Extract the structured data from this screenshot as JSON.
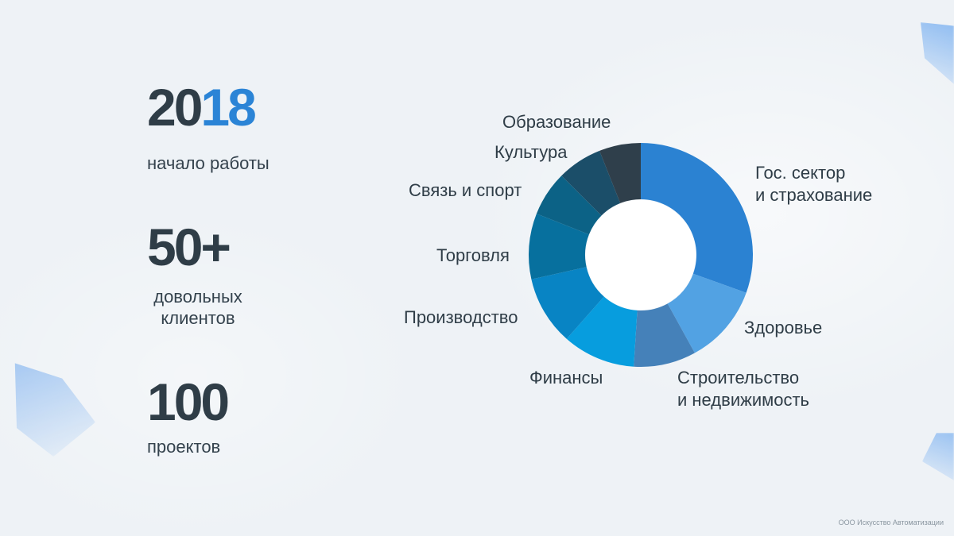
{
  "stats": [
    {
      "value_main": "20",
      "value_accent": "18",
      "label": "начало работы"
    },
    {
      "value_main": "50+",
      "value_accent": "",
      "label": "довольных\nклиентов"
    },
    {
      "value_main": "100",
      "value_accent": "",
      "label": "проектов"
    }
  ],
  "chart_data": {
    "type": "pie",
    "donut": true,
    "categories": [
      "Гос. сектор\nи страхование",
      "Здоровье",
      "Строительство\nи недвижимость",
      "Финансы",
      "Производство",
      "Торговля",
      "Связь и спорт",
      "Культура",
      "Образование"
    ],
    "values": [
      30.5,
      11.5,
      9,
      10.5,
      10,
      9.5,
      6.5,
      6.5,
      6
    ],
    "colors": [
      "#2b82d2",
      "#52a2e3",
      "#4581b9",
      "#079dde",
      "#0884c4",
      "#07709e",
      "#0c6286",
      "#1b4e69",
      "#2f3f4b"
    ]
  },
  "footer": {
    "note": "ООО Искусство Автоматизации"
  }
}
